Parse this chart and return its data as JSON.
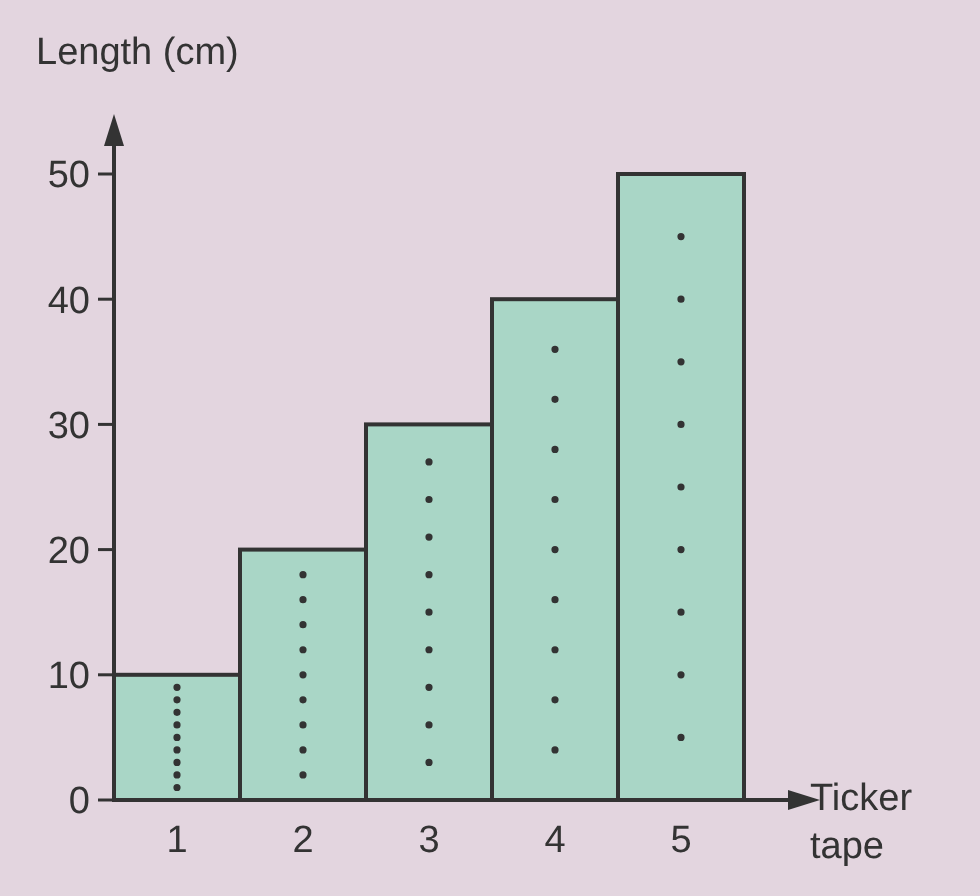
{
  "chart_data": {
    "type": "bar",
    "xlabel": "Ticker tape",
    "ylabel": "Length (cm)",
    "categories": [
      "1",
      "2",
      "3",
      "4",
      "5"
    ],
    "values": [
      10,
      20,
      30,
      40,
      50
    ],
    "color": "#a9d6c6",
    "ylim": [
      0,
      50
    ],
    "yticks": [
      0,
      10,
      20,
      30,
      40,
      50
    ],
    "grid": false
  }
}
